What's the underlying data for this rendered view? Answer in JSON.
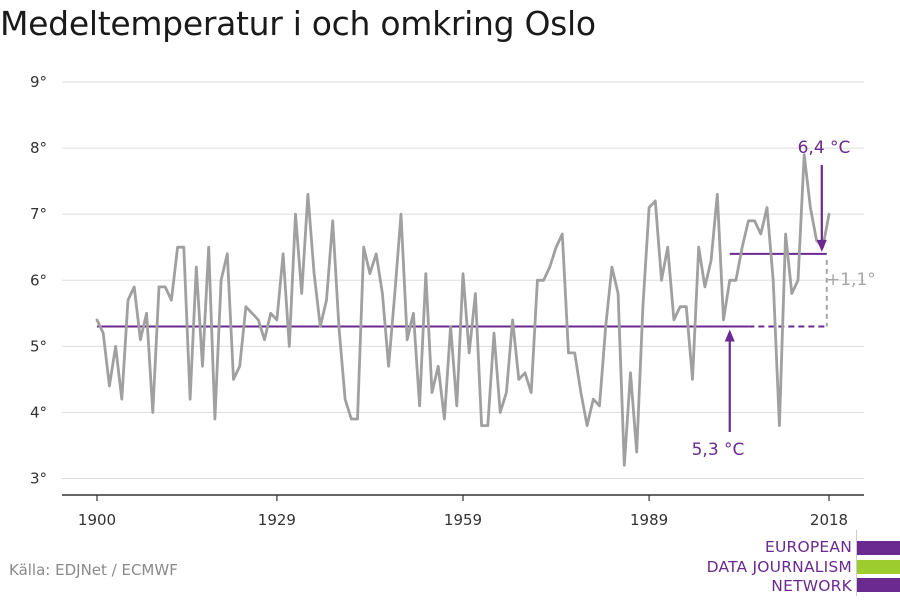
{
  "title": "Medeltemperatur i och omkring Oslo",
  "source": "Källa: EDJNet / ECMWF",
  "logo": {
    "lines": [
      "EUROPEAN",
      "DATA JOURNALISM",
      "NETWORK"
    ],
    "colors": [
      "#6a2a8f",
      "#9dcc2e",
      "#6a2a8f"
    ]
  },
  "colors": {
    "series": "#a0a0a0",
    "accent": "#6a2a8f",
    "diff": "#a6a6a6",
    "grid": "#dddddd",
    "axis": "#333333"
  },
  "chart_data": {
    "type": "line",
    "title": "Medeltemperatur i och omkring Oslo",
    "xlabel": "",
    "ylabel": "",
    "xlim": [
      1900,
      2018
    ],
    "ylim": [
      3,
      9
    ],
    "x_ticks": [
      1900,
      1929,
      1959,
      1989,
      2018
    ],
    "y_ticks": [
      3,
      4,
      5,
      6,
      7,
      8,
      9
    ],
    "y_tick_labels": [
      "3°",
      "4°",
      "5°",
      "6°",
      "7°",
      "8°",
      "9°"
    ],
    "grid": true,
    "series": [
      {
        "x": [
          1900,
          1901,
          1902,
          1903,
          1904,
          1905,
          1906,
          1907,
          1908,
          1909,
          1910,
          1911,
          1912,
          1913,
          1914,
          1915,
          1916,
          1917,
          1918,
          1919,
          1920,
          1921,
          1922,
          1923,
          1924,
          1925,
          1926,
          1927,
          1928,
          1929,
          1930,
          1931,
          1932,
          1933,
          1934,
          1935,
          1936,
          1937,
          1938,
          1939,
          1940,
          1941,
          1942,
          1943,
          1944,
          1945,
          1946,
          1947,
          1948,
          1949,
          1950,
          1951,
          1952,
          1953,
          1954,
          1955,
          1956,
          1957,
          1958,
          1959,
          1960,
          1961,
          1962,
          1963,
          1964,
          1965,
          1966,
          1967,
          1968,
          1969,
          1970,
          1971,
          1972,
          1973,
          1974,
          1975,
          1976,
          1977,
          1978,
          1979,
          1980,
          1981,
          1982,
          1983,
          1984,
          1985,
          1986,
          1987,
          1988,
          1989,
          1990,
          1991,
          1992,
          1993,
          1994,
          1995,
          1996,
          1997,
          1998,
          1999,
          2000,
          2001,
          2002,
          2003,
          2004,
          2005,
          2006,
          2007,
          2008,
          2009,
          2010,
          2011,
          2012,
          2013,
          2014,
          2015,
          2016,
          2017,
          2018
        ],
        "values": [
          5.4,
          5.2,
          4.4,
          5.0,
          4.2,
          5.7,
          5.9,
          5.1,
          5.5,
          4.0,
          5.9,
          5.9,
          5.7,
          6.5,
          6.5,
          4.2,
          6.2,
          4.7,
          6.5,
          3.9,
          6.0,
          6.4,
          4.5,
          4.7,
          5.6,
          5.5,
          5.4,
          5.1,
          5.5,
          5.4,
          6.4,
          5.0,
          7.0,
          5.8,
          7.3,
          6.1,
          5.3,
          5.7,
          6.9,
          5.3,
          4.2,
          3.9,
          3.9,
          6.5,
          6.1,
          6.4,
          5.8,
          4.7,
          5.8,
          7.0,
          5.1,
          5.5,
          4.1,
          6.1,
          4.3,
          4.7,
          3.9,
          5.3,
          4.1,
          6.1,
          4.9,
          5.8,
          3.8,
          3.8,
          5.2,
          4.0,
          4.3,
          5.4,
          4.5,
          4.6,
          4.3,
          6.0,
          6.0,
          6.2,
          6.5,
          6.7,
          4.9,
          4.9,
          4.3,
          3.8,
          4.2,
          4.1,
          5.3,
          6.2,
          5.8,
          3.2,
          4.6,
          3.4,
          5.6,
          7.1,
          7.2,
          6.0,
          6.5,
          5.4,
          5.6,
          5.6,
          4.5,
          6.5,
          5.9,
          6.3,
          7.3,
          5.4,
          6.0,
          6.0,
          6.5,
          6.9,
          6.9,
          6.7,
          7.1,
          6.0,
          3.8,
          6.7,
          5.8,
          6.0,
          7.9,
          7.1,
          6.6,
          6.5,
          7.0
        ]
      }
    ],
    "annotations": [
      {
        "label": "6,4 °C",
        "value": 6.4,
        "x_from": 2002,
        "x_to": 2017
      },
      {
        "label": "5,3 °C",
        "value": 5.3,
        "x_from": 1900,
        "x_to": 2017
      },
      {
        "label": "+1,1°",
        "value": 1.1
      }
    ]
  }
}
